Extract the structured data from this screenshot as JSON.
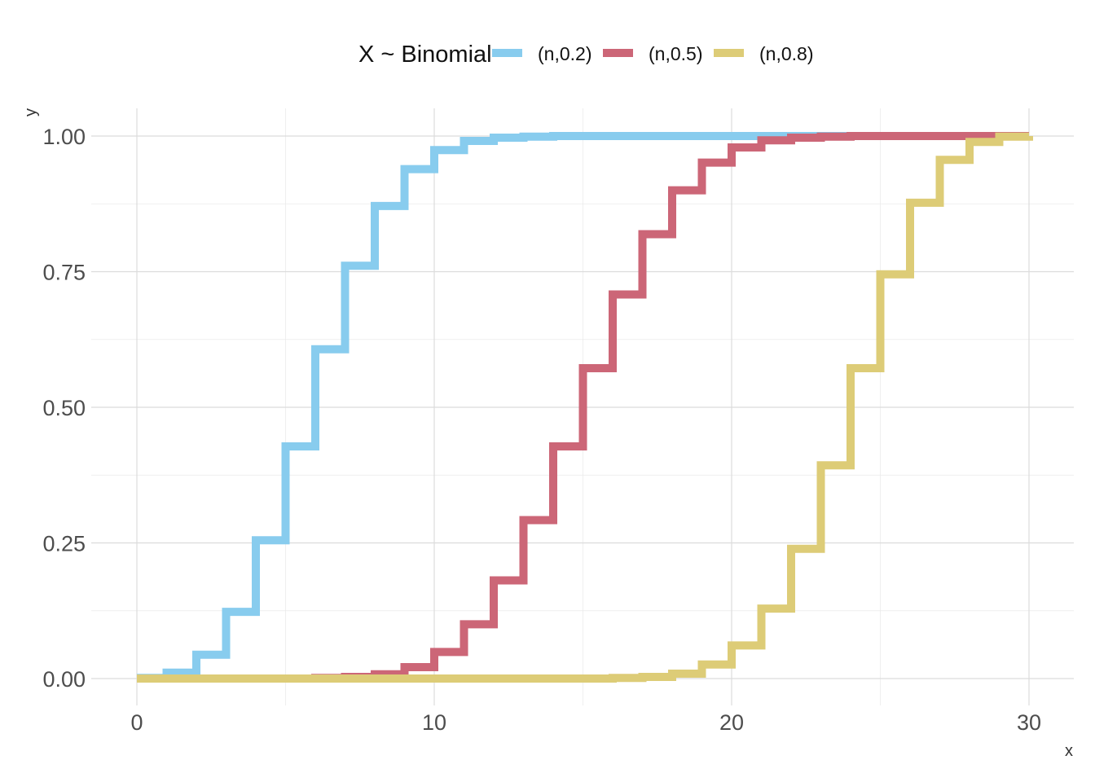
{
  "chart_data": {
    "type": "line",
    "step": true,
    "title": "",
    "xlabel": "x",
    "ylabel": "y",
    "xlim": [
      0,
      30
    ],
    "ylim": [
      0,
      1
    ],
    "x_ticks": [
      0,
      10,
      20,
      30
    ],
    "y_ticks": [
      0,
      0.25,
      0.5,
      0.75,
      1
    ],
    "y_tick_labels": [
      "0.00",
      "0.25",
      "0.50",
      "0.75",
      "1.00"
    ],
    "grid": true,
    "legend": {
      "position": "top",
      "title": "X ~ Binomial"
    },
    "x": [
      0,
      1,
      2,
      3,
      4,
      5,
      6,
      7,
      8,
      9,
      10,
      11,
      12,
      13,
      14,
      15,
      16,
      17,
      18,
      19,
      20,
      21,
      22,
      23,
      24,
      25,
      26,
      27,
      28,
      29,
      30
    ],
    "series": [
      {
        "name": "(n,0.2)",
        "color": "#88ccee",
        "values": [
          0.001,
          0.011,
          0.044,
          0.123,
          0.255,
          0.428,
          0.607,
          0.761,
          0.871,
          0.939,
          0.974,
          0.991,
          0.997,
          0.999,
          1.0,
          1.0,
          1.0,
          1.0,
          1.0,
          1.0,
          1.0,
          1.0,
          1.0,
          1.0,
          1.0,
          1.0,
          1.0,
          1.0,
          1.0,
          1.0,
          1.0
        ]
      },
      {
        "name": "(n,0.5)",
        "color": "#cc6677",
        "values": [
          0,
          0,
          0,
          0,
          0,
          0,
          0.001,
          0.003,
          0.008,
          0.021,
          0.049,
          0.1,
          0.181,
          0.292,
          0.428,
          0.572,
          0.708,
          0.819,
          0.9,
          0.951,
          0.979,
          0.992,
          0.997,
          0.999,
          1.0,
          1.0,
          1.0,
          1.0,
          1.0,
          1.0,
          1.0
        ]
      },
      {
        "name": "(n,0.8)",
        "color": "#ddcc77",
        "values": [
          0,
          0,
          0,
          0,
          0,
          0,
          0,
          0,
          0,
          0,
          0,
          0,
          0,
          0,
          0,
          0,
          0.001,
          0.003,
          0.009,
          0.026,
          0.061,
          0.129,
          0.239,
          0.393,
          0.572,
          0.745,
          0.877,
          0.956,
          0.989,
          0.999,
          1.0
        ]
      }
    ]
  }
}
